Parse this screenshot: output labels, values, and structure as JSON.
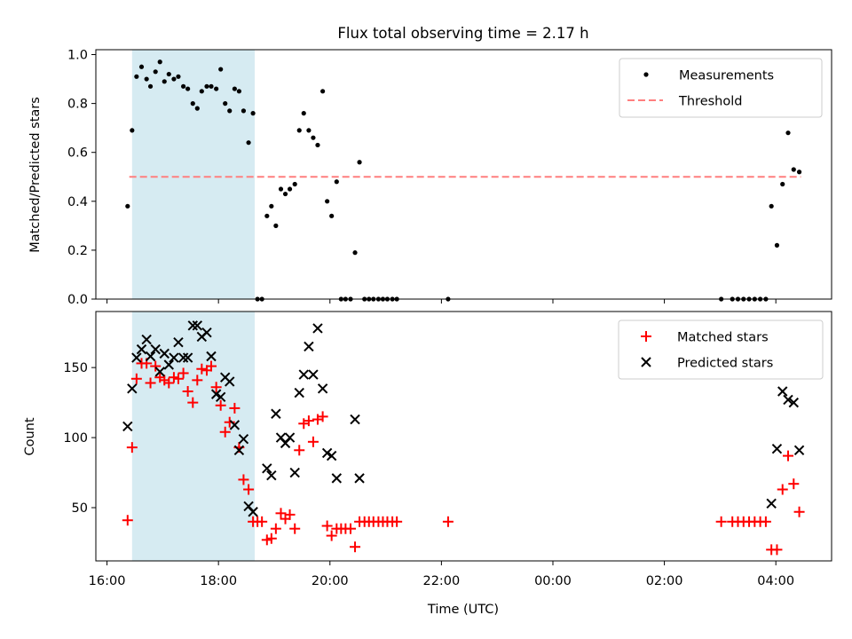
{
  "chart_data": [
    {
      "type": "scatter",
      "title": "Flux total observing time = 2.17 h",
      "xlabel": "",
      "ylabel": "Matched/Predicted stars",
      "xlim": [
        15.8,
        29.0
      ],
      "ylim": [
        0.0,
        1.02
      ],
      "yticks": [
        0.0,
        0.2,
        0.4,
        0.6,
        0.8,
        1.0
      ],
      "ytick_labels": [
        "0.0",
        "0.2",
        "0.4",
        "0.6",
        "0.8",
        "1.0"
      ],
      "shaded_region": [
        16.45,
        18.65
      ],
      "threshold": {
        "value": 0.5,
        "x_range": [
          16.4,
          28.45
        ]
      },
      "legend": {
        "position": "upper right",
        "entries": [
          "Measurements",
          "Threshold"
        ]
      },
      "colors": {
        "points": "#000000",
        "threshold": "#ff7f7f",
        "shade": "#add8e6"
      },
      "series": [
        {
          "name": "Measurements",
          "x": [
            16.37,
            16.45,
            16.53,
            16.62,
            16.71,
            16.78,
            16.87,
            16.95,
            17.03,
            17.11,
            17.2,
            17.28,
            17.37,
            17.45,
            17.54,
            17.62,
            17.7,
            17.79,
            17.87,
            17.96,
            18.04,
            18.12,
            18.2,
            18.29,
            18.37,
            18.45,
            18.54,
            18.62,
            18.7,
            18.78,
            18.87,
            18.95,
            19.03,
            19.12,
            19.2,
            19.28,
            19.37,
            19.45,
            19.53,
            19.62,
            19.7,
            19.78,
            19.87,
            19.95,
            20.03,
            20.12,
            20.2,
            20.28,
            20.37,
            20.45,
            20.53,
            20.62,
            20.7,
            20.78,
            20.87,
            20.95,
            21.03,
            21.12,
            21.2,
            22.12,
            27.02,
            27.22,
            27.32,
            27.42,
            27.52,
            27.62,
            27.72,
            27.82,
            27.92,
            28.02,
            28.12,
            28.22,
            28.32,
            28.42
          ],
          "values": [
            0.38,
            0.69,
            0.91,
            0.95,
            0.9,
            0.87,
            0.93,
            0.97,
            0.89,
            0.92,
            0.9,
            0.91,
            0.87,
            0.86,
            0.8,
            0.78,
            0.85,
            0.87,
            0.87,
            0.86,
            0.94,
            0.8,
            0.77,
            0.86,
            0.85,
            0.77,
            0.64,
            0.76,
            0.0,
            0.0,
            0.34,
            0.38,
            0.3,
            0.45,
            0.43,
            0.45,
            0.47,
            0.69,
            0.76,
            0.69,
            0.66,
            0.63,
            0.85,
            0.4,
            0.34,
            0.48,
            0.0,
            0.0,
            0.0,
            0.19,
            0.56,
            0.0,
            0.0,
            0.0,
            0.0,
            0.0,
            0.0,
            0.0,
            0.0,
            0.0,
            0.0,
            0.0,
            0.0,
            0.0,
            0.0,
            0.0,
            0.0,
            0.0,
            0.38,
            0.22,
            0.47,
            0.68,
            0.53,
            0.52
          ]
        }
      ]
    },
    {
      "type": "scatter",
      "title": "",
      "xlabel": "Time (UTC)",
      "ylabel": "Count",
      "xlim": [
        15.8,
        29.0
      ],
      "ylim": [
        12,
        190
      ],
      "yticks": [
        50,
        100,
        150
      ],
      "ytick_labels": [
        "50",
        "100",
        "150"
      ],
      "xticks": [
        16,
        18,
        20,
        22,
        24,
        26,
        28
      ],
      "xtick_labels": [
        "16:00",
        "18:00",
        "20:00",
        "22:00",
        "00:00",
        "02:00",
        "04:00"
      ],
      "shaded_region": [
        16.45,
        18.65
      ],
      "legend": {
        "position": "upper right",
        "entries": [
          "Matched stars",
          "Predicted stars"
        ]
      },
      "colors": {
        "matched": "#ff0000",
        "predicted": "#000000",
        "shade": "#add8e6"
      },
      "series": [
        {
          "name": "Matched stars",
          "marker": "plus",
          "x": [
            16.37,
            16.45,
            16.53,
            16.62,
            16.71,
            16.78,
            16.87,
            16.95,
            17.03,
            17.11,
            17.2,
            17.28,
            17.37,
            17.45,
            17.54,
            17.62,
            17.7,
            17.79,
            17.87,
            17.96,
            18.04,
            18.12,
            18.2,
            18.29,
            18.37,
            18.45,
            18.54,
            18.62,
            18.7,
            18.78,
            18.87,
            18.95,
            19.03,
            19.12,
            19.2,
            19.28,
            19.37,
            19.45,
            19.53,
            19.62,
            19.7,
            19.78,
            19.87,
            19.95,
            20.03,
            20.12,
            20.2,
            20.28,
            20.37,
            20.45,
            20.53,
            20.62,
            20.7,
            20.78,
            20.87,
            20.95,
            21.03,
            21.12,
            21.2,
            22.12,
            27.02,
            27.22,
            27.32,
            27.42,
            27.52,
            27.62,
            27.72,
            27.82,
            27.92,
            28.02,
            28.12,
            28.22,
            28.32,
            28.42
          ],
          "values": [
            41,
            93,
            142,
            153,
            153,
            139,
            151,
            143,
            141,
            139,
            143,
            142,
            146,
            133,
            125,
            141,
            149,
            148,
            151,
            136,
            123,
            104,
            111,
            121,
            93,
            70,
            63,
            40,
            40,
            40,
            27,
            28,
            35,
            46,
            42,
            45,
            35,
            91,
            110,
            112,
            97,
            113,
            115,
            37,
            30,
            35,
            35,
            35,
            35,
            22,
            40,
            40,
            40,
            40,
            40,
            40,
            40,
            40,
            40,
            40,
            40,
            40,
            40,
            40,
            40,
            40,
            40,
            40,
            20,
            20,
            63,
            87,
            67,
            47
          ]
        },
        {
          "name": "Predicted stars",
          "marker": "x",
          "x": [
            16.37,
            16.45,
            16.53,
            16.62,
            16.71,
            16.78,
            16.87,
            16.95,
            17.03,
            17.11,
            17.2,
            17.28,
            17.37,
            17.45,
            17.54,
            17.62,
            17.7,
            17.79,
            17.87,
            17.96,
            18.04,
            18.12,
            18.2,
            18.29,
            18.37,
            18.45,
            18.54,
            18.62,
            18.87,
            18.95,
            19.03,
            19.12,
            19.2,
            19.28,
            19.37,
            19.45,
            19.53,
            19.62,
            19.7,
            19.78,
            19.87,
            19.95,
            20.03,
            20.12,
            20.45,
            20.53,
            27.92,
            28.02,
            28.12,
            28.22,
            28.32,
            28.42
          ],
          "values": [
            108,
            135,
            157,
            163,
            170,
            158,
            163,
            147,
            160,
            152,
            157,
            168,
            157,
            157,
            180,
            180,
            172,
            175,
            158,
            131,
            129,
            143,
            140,
            109,
            91,
            99,
            51,
            47,
            78,
            73,
            117,
            100,
            96,
            100,
            75,
            132,
            145,
            165,
            145,
            178,
            135,
            89,
            87,
            71,
            113,
            71,
            53,
            92,
            133,
            127,
            125,
            91
          ]
        }
      ]
    }
  ]
}
